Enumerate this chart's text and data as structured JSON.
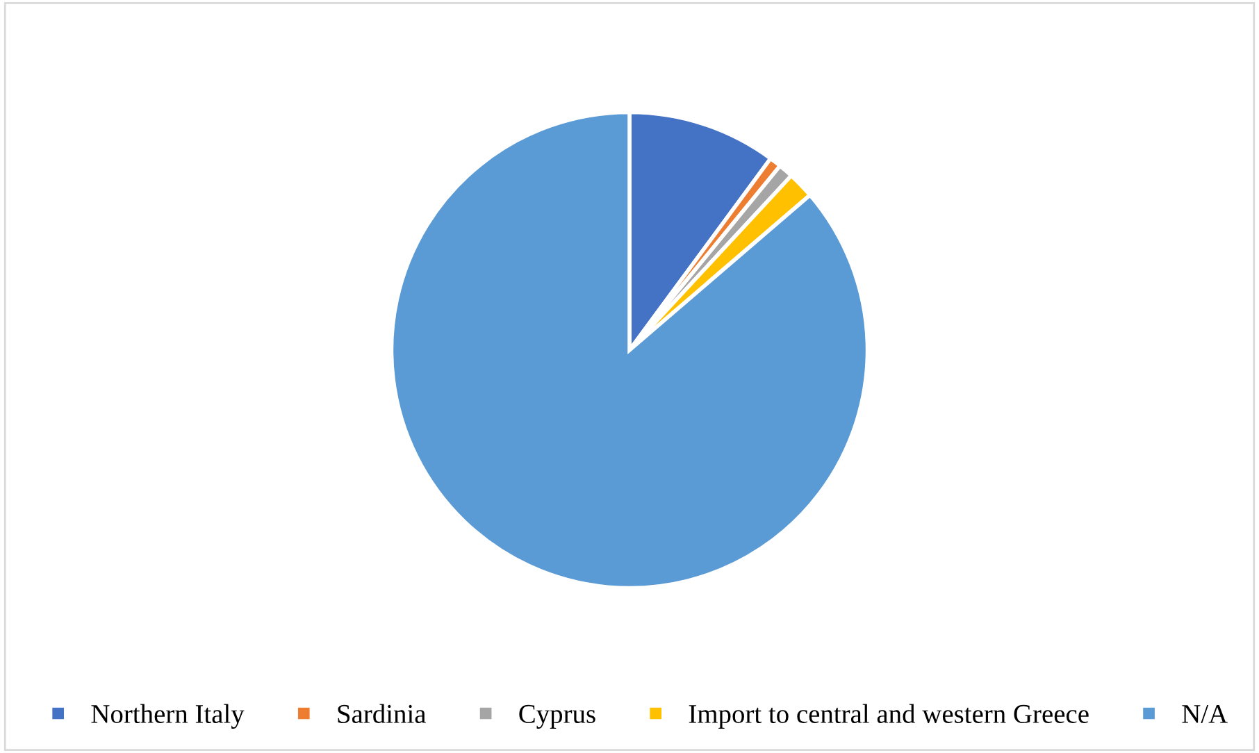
{
  "chart_data": {
    "type": "pie",
    "categories": [
      "Northern Italy",
      "Sardinia",
      "Cyprus",
      "Import to central and western Greece",
      "N/A"
    ],
    "values": [
      10.1,
      0.8,
      1.0,
      1.8,
      86.3
    ],
    "colors": [
      "#4472c4",
      "#ed7d31",
      "#a5a5a5",
      "#ffc000",
      "#5b9bd5"
    ],
    "legend": "bottom"
  }
}
